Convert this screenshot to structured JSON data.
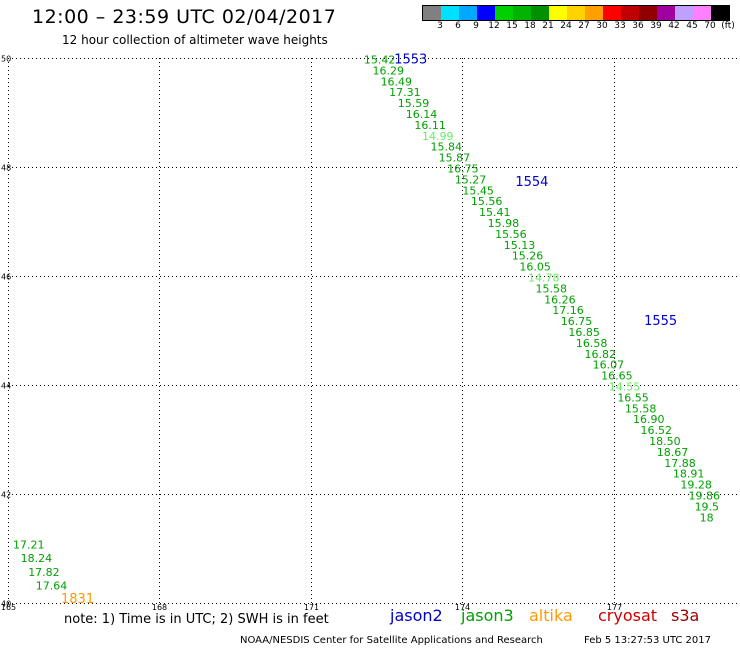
{
  "header": {
    "title": "12:00 – 23:59 UTC 02/04/2017",
    "subtitle": "12 hour collection of altimeter wave heights"
  },
  "colorbar": {
    "unit": "(ft)",
    "colors": [
      "#808080",
      "#00e0ff",
      "#00a8ff",
      "#0000ff",
      "#00d000",
      "#00b400",
      "#009000",
      "#ffff00",
      "#ffd200",
      "#ffa000",
      "#ff0000",
      "#c00000",
      "#900000",
      "#a000a0",
      "#c0a0ff",
      "#ff80ff",
      "#000000"
    ],
    "labels": [
      "3",
      "6",
      "9",
      "12",
      "15",
      "18",
      "21",
      "24",
      "27",
      "30",
      "33",
      "36",
      "39",
      "42",
      "45",
      "70"
    ]
  },
  "legend": {
    "note": "note: 1) Time is in UTC; 2) SWH is in feet",
    "satellites": [
      {
        "name": "jason2",
        "color": "#0000cc"
      },
      {
        "name": "jason3",
        "color": "#00a000"
      },
      {
        "name": "altika",
        "color": "#ff9900"
      },
      {
        "name": "cryosat",
        "color": "#cc0000"
      },
      {
        "name": "s3a",
        "color": "#990000"
      }
    ]
  },
  "footer": {
    "credit": "NOAA/NESDIS Center for Satellite Applications and Research",
    "timestamp": "Feb  5 13:27:53 UTC 2017"
  },
  "chart_data": {
    "type": "scatter",
    "xlim": [
      165,
      179.5
    ],
    "ylim": [
      40,
      50
    ],
    "x_ticks": [
      165,
      168,
      171,
      174,
      177
    ],
    "y_ticks": [
      40,
      42,
      44,
      46,
      48,
      50
    ],
    "colors": {
      "jason3": "#00a000",
      "jason3_light": "#66ee66",
      "jason2": "#0000cc",
      "altika": "#ff9900"
    },
    "pass_labels": [
      {
        "label": "1553",
        "lon": 172.65,
        "lat": 49.9,
        "color": "jason2"
      },
      {
        "label": "1554",
        "lon": 175.05,
        "lat": 47.65,
        "color": "jason2"
      },
      {
        "label": "1555",
        "lon": 177.6,
        "lat": 45.1,
        "color": "jason2"
      },
      {
        "label": "1831",
        "lon": 166.05,
        "lat": 40.0,
        "color": "altika"
      }
    ],
    "points": [
      {
        "lon": 172.05,
        "lat": 49.9,
        "v": "15.42",
        "c": "jason3"
      },
      {
        "lon": 172.22,
        "lat": 49.7,
        "v": "16.29",
        "c": "jason3"
      },
      {
        "lon": 172.38,
        "lat": 49.5,
        "v": "16.49",
        "c": "jason3"
      },
      {
        "lon": 172.55,
        "lat": 49.3,
        "v": "17.31",
        "c": "jason3"
      },
      {
        "lon": 172.72,
        "lat": 49.1,
        "v": "15.59",
        "c": "jason3"
      },
      {
        "lon": 172.88,
        "lat": 48.9,
        "v": "16.14",
        "c": "jason3"
      },
      {
        "lon": 173.05,
        "lat": 48.7,
        "v": "16.11",
        "c": "jason3"
      },
      {
        "lon": 173.2,
        "lat": 48.5,
        "v": "14.99",
        "c": "jason3_light"
      },
      {
        "lon": 173.37,
        "lat": 48.3,
        "v": "15.84",
        "c": "jason3"
      },
      {
        "lon": 173.53,
        "lat": 48.1,
        "v": "15.87",
        "c": "jason3"
      },
      {
        "lon": 173.7,
        "lat": 47.9,
        "v": "16.75",
        "c": "jason3"
      },
      {
        "lon": 173.85,
        "lat": 47.7,
        "v": "15.27",
        "c": "jason3"
      },
      {
        "lon": 174.0,
        "lat": 47.5,
        "v": "15.45",
        "c": "jason3"
      },
      {
        "lon": 174.17,
        "lat": 47.3,
        "v": "15.56",
        "c": "jason3"
      },
      {
        "lon": 174.33,
        "lat": 47.1,
        "v": "15.41",
        "c": "jason3"
      },
      {
        "lon": 174.5,
        "lat": 46.9,
        "v": "15.98",
        "c": "jason3"
      },
      {
        "lon": 174.65,
        "lat": 46.7,
        "v": "15.56",
        "c": "jason3"
      },
      {
        "lon": 174.82,
        "lat": 46.5,
        "v": "15.13",
        "c": "jason3"
      },
      {
        "lon": 174.98,
        "lat": 46.3,
        "v": "15.26",
        "c": "jason3"
      },
      {
        "lon": 175.13,
        "lat": 46.1,
        "v": "16.05",
        "c": "jason3"
      },
      {
        "lon": 175.3,
        "lat": 45.9,
        "v": "14.78",
        "c": "jason3_light"
      },
      {
        "lon": 175.45,
        "lat": 45.7,
        "v": "15.58",
        "c": "jason3"
      },
      {
        "lon": 175.62,
        "lat": 45.5,
        "v": "16.26",
        "c": "jason3"
      },
      {
        "lon": 175.78,
        "lat": 45.3,
        "v": "17.16",
        "c": "jason3"
      },
      {
        "lon": 175.95,
        "lat": 45.1,
        "v": "16.75",
        "c": "jason3"
      },
      {
        "lon": 176.1,
        "lat": 44.9,
        "v": "16.85",
        "c": "jason3"
      },
      {
        "lon": 176.25,
        "lat": 44.7,
        "v": "16.58",
        "c": "jason3"
      },
      {
        "lon": 176.42,
        "lat": 44.5,
        "v": "16.82",
        "c": "jason3"
      },
      {
        "lon": 176.58,
        "lat": 44.3,
        "v": "16.07",
        "c": "jason3"
      },
      {
        "lon": 176.75,
        "lat": 44.1,
        "v": "16.65",
        "c": "jason3"
      },
      {
        "lon": 176.9,
        "lat": 43.9,
        "v": "14.55",
        "c": "jason3_light"
      },
      {
        "lon": 177.07,
        "lat": 43.7,
        "v": "16.55",
        "c": "jason3"
      },
      {
        "lon": 177.22,
        "lat": 43.5,
        "v": "15.58",
        "c": "jason3"
      },
      {
        "lon": 177.38,
        "lat": 43.3,
        "v": "16.90",
        "c": "jason3"
      },
      {
        "lon": 177.53,
        "lat": 43.1,
        "v": "16.52",
        "c": "jason3"
      },
      {
        "lon": 177.7,
        "lat": 42.9,
        "v": "18.50",
        "c": "jason3"
      },
      {
        "lon": 177.85,
        "lat": 42.7,
        "v": "18.67",
        "c": "jason3"
      },
      {
        "lon": 178.0,
        "lat": 42.5,
        "v": "17.88",
        "c": "jason3"
      },
      {
        "lon": 178.17,
        "lat": 42.3,
        "v": "18.91",
        "c": "jason3"
      },
      {
        "lon": 178.32,
        "lat": 42.1,
        "v": "19.28",
        "c": "jason3"
      },
      {
        "lon": 178.48,
        "lat": 41.9,
        "v": "19.86",
        "c": "jason3"
      },
      {
        "lon": 178.6,
        "lat": 41.7,
        "v": "19.5",
        "c": "jason3"
      },
      {
        "lon": 178.7,
        "lat": 41.5,
        "v": "18",
        "c": "jason3"
      },
      {
        "lon": 165.1,
        "lat": 41.0,
        "v": "17.21",
        "c": "jason3"
      },
      {
        "lon": 165.25,
        "lat": 40.75,
        "v": "18.24",
        "c": "jason3"
      },
      {
        "lon": 165.4,
        "lat": 40.5,
        "v": "17.82",
        "c": "jason3"
      },
      {
        "lon": 165.55,
        "lat": 40.25,
        "v": "17.64",
        "c": "jason3"
      }
    ]
  }
}
